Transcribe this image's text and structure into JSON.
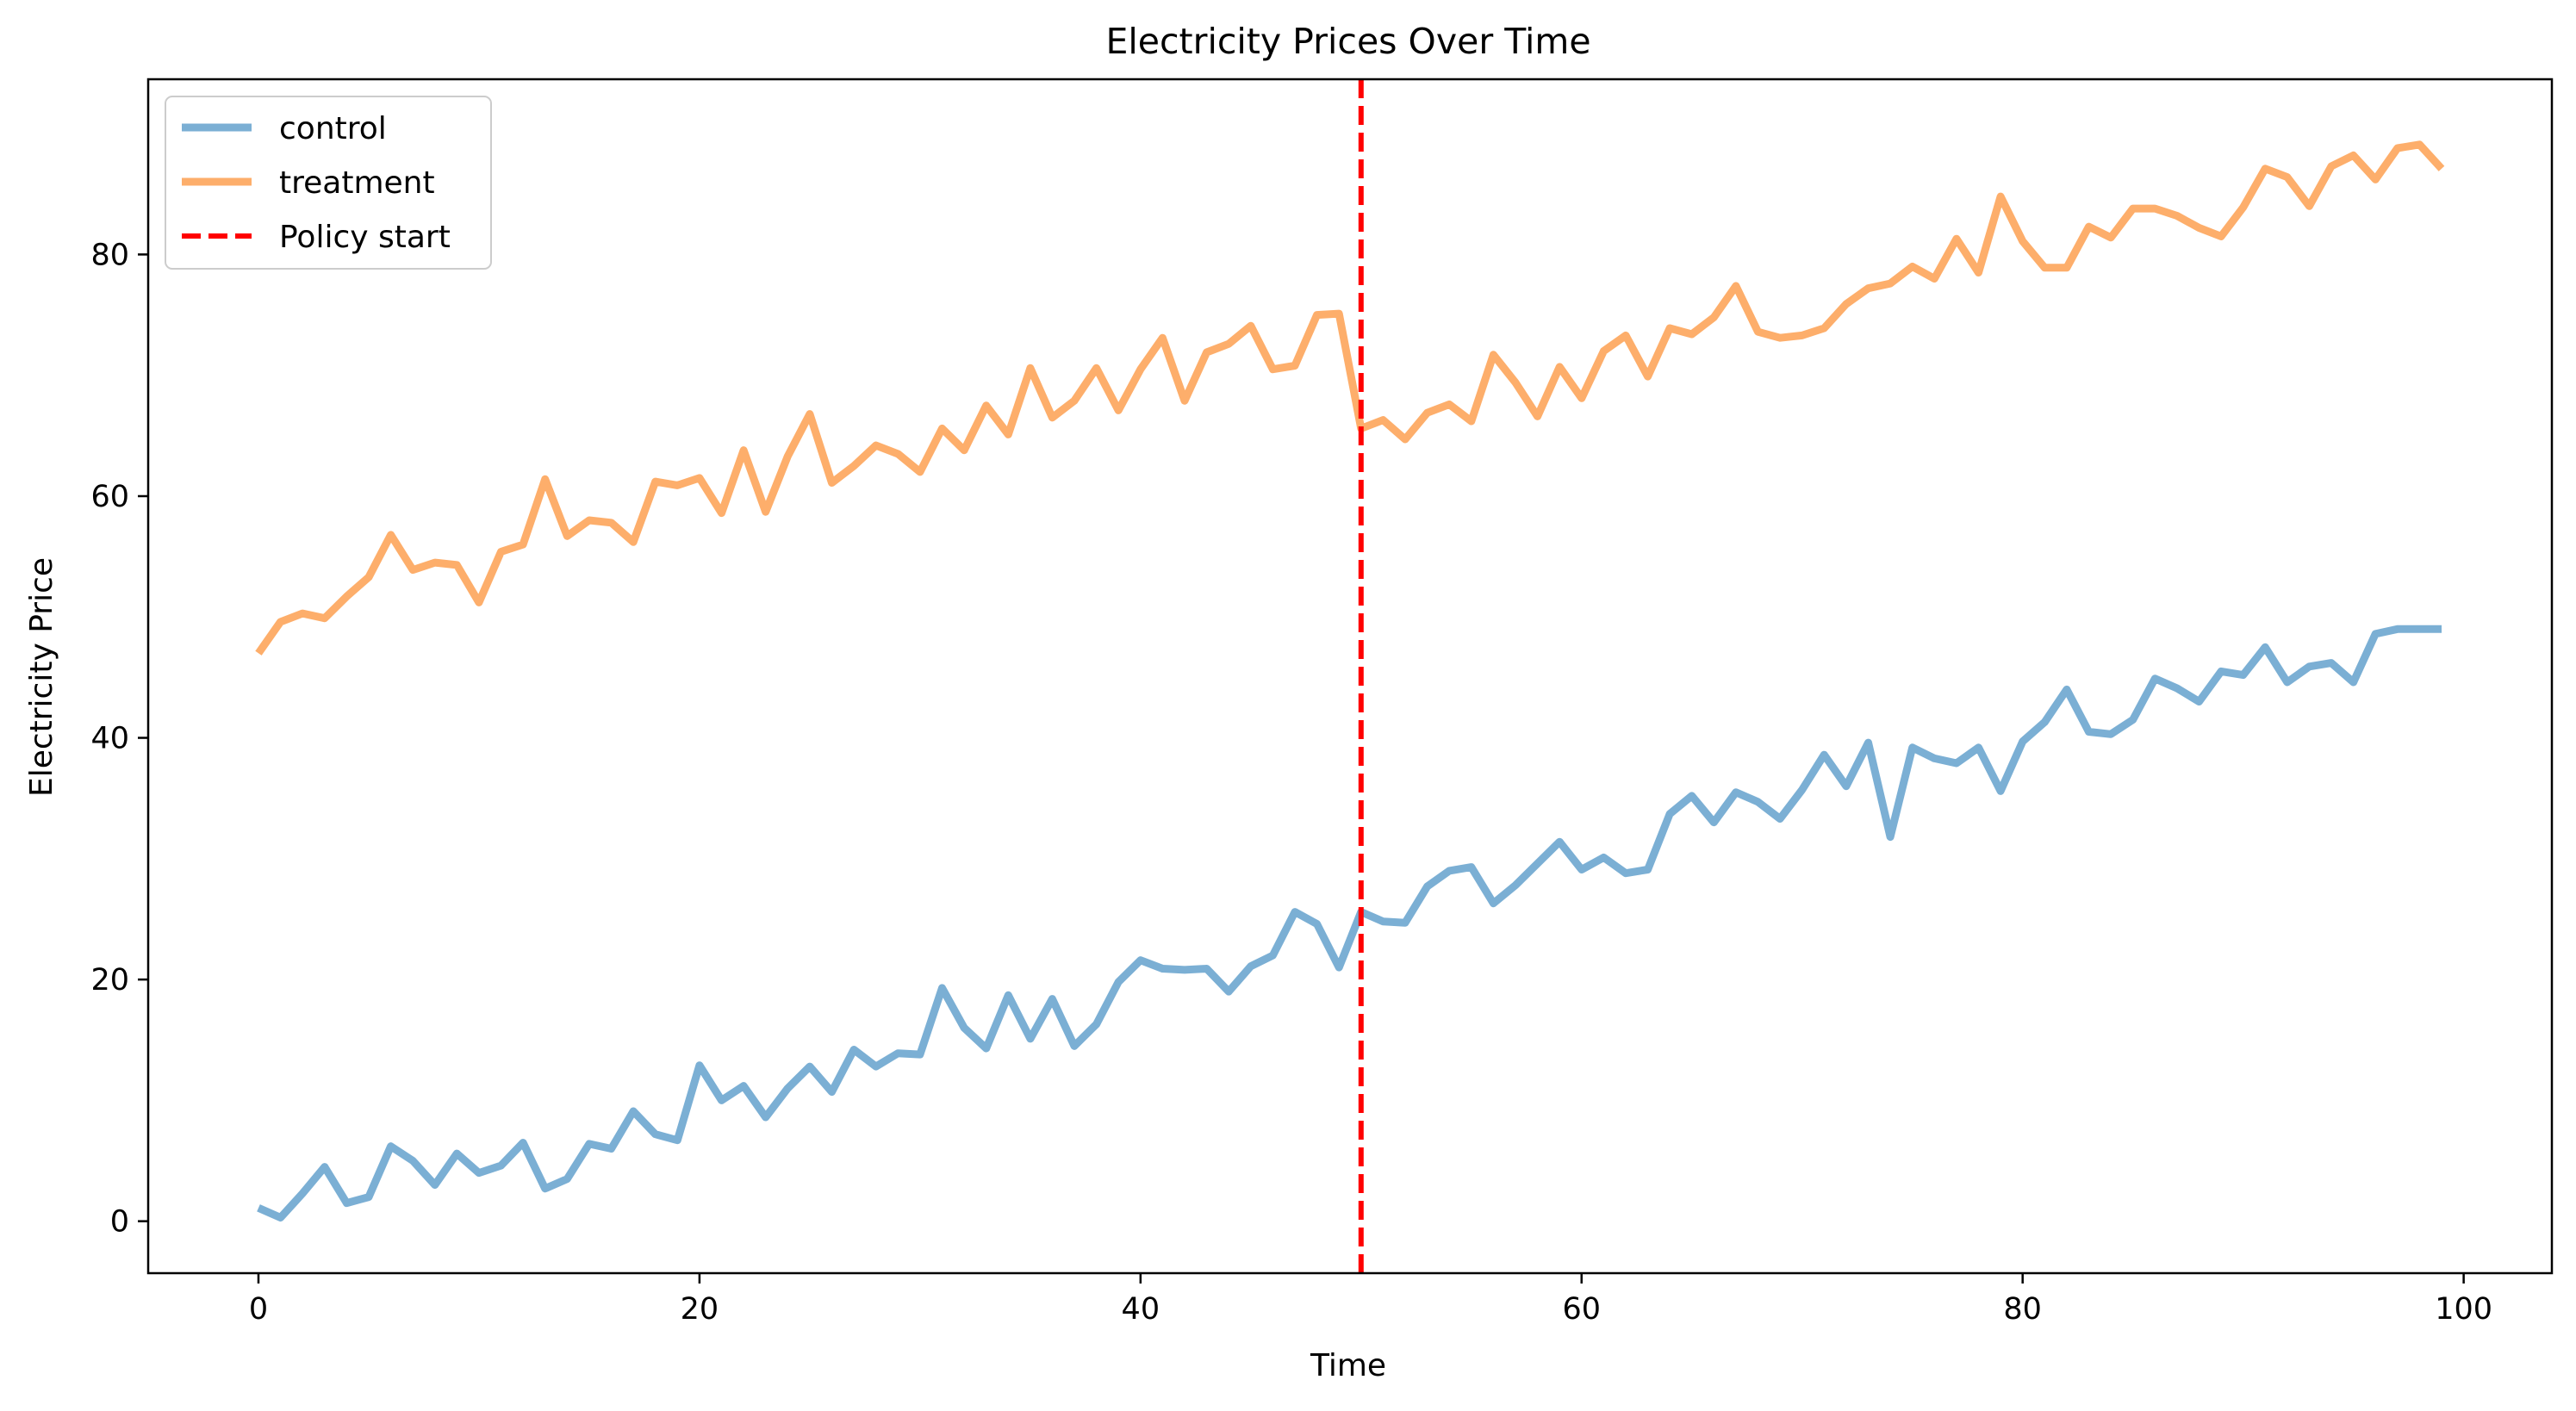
{
  "chart_data": {
    "type": "line",
    "title": "Electricity Prices Over Time",
    "xlabel": "Time",
    "ylabel": "Electricity Price",
    "xlim": [
      -5,
      104
    ],
    "ylim": [
      -4.3,
      94.5
    ],
    "xticks": [
      0,
      20,
      40,
      60,
      80,
      100
    ],
    "yticks": [
      0,
      20,
      40,
      60,
      80
    ],
    "grid": false,
    "legend_position": "top-left",
    "x": [
      0,
      1,
      2,
      3,
      4,
      5,
      6,
      7,
      8,
      9,
      10,
      11,
      12,
      13,
      14,
      15,
      16,
      17,
      18,
      19,
      20,
      21,
      22,
      23,
      24,
      25,
      26,
      27,
      28,
      29,
      30,
      31,
      32,
      33,
      34,
      35,
      36,
      37,
      38,
      39,
      40,
      41,
      42,
      43,
      44,
      45,
      46,
      47,
      48,
      49,
      50,
      51,
      52,
      53,
      54,
      55,
      56,
      57,
      58,
      59,
      60,
      61,
      62,
      63,
      64,
      65,
      66,
      67,
      68,
      69,
      70,
      71,
      72,
      73,
      74,
      75,
      76,
      77,
      78,
      79,
      80,
      81,
      82,
      83,
      84,
      85,
      86,
      87,
      88,
      89,
      90,
      91,
      92,
      93,
      94,
      95,
      96,
      97,
      98,
      99
    ],
    "series": [
      {
        "name": "control",
        "color": "#7bafd4",
        "style": "solid",
        "values": [
          1.1,
          0.3,
          2.3,
          4.5,
          1.5,
          2.0,
          6.2,
          5.0,
          3.0,
          5.6,
          4.0,
          4.6,
          6.5,
          2.7,
          3.5,
          6.4,
          6.0,
          9.1,
          7.2,
          6.7,
          12.9,
          10.0,
          11.2,
          8.6,
          11.0,
          12.8,
          10.7,
          14.2,
          12.8,
          13.9,
          13.8,
          19.3,
          16.0,
          14.3,
          18.7,
          15.1,
          18.4,
          14.5,
          16.3,
          19.8,
          21.6,
          20.9,
          20.8,
          20.9,
          19.0,
          21.1,
          22.0,
          25.6,
          24.6,
          21.0,
          25.6,
          24.8,
          24.7,
          27.7,
          29.0,
          29.3,
          26.3,
          27.8,
          29.6,
          31.4,
          29.1,
          30.1,
          28.8,
          29.1,
          33.7,
          35.2,
          33.0,
          35.5,
          34.7,
          33.3,
          35.7,
          38.6,
          36.0,
          39.6,
          31.8,
          39.2,
          38.3,
          37.9,
          39.2,
          35.6,
          39.7,
          41.3,
          44.0,
          40.5,
          40.3,
          41.5,
          44.9,
          44.1,
          43.0,
          45.5,
          45.2,
          47.5,
          44.6,
          45.9,
          46.2,
          44.6,
          48.6,
          49.0,
          49.0,
          49.0
        ]
      },
      {
        "name": "treatment",
        "color": "#fdae6b",
        "style": "solid",
        "values": [
          47.0,
          49.6,
          50.3,
          49.9,
          51.7,
          53.3,
          56.8,
          53.9,
          54.5,
          54.3,
          51.2,
          55.4,
          56.0,
          61.4,
          56.7,
          58.0,
          57.8,
          56.2,
          61.2,
          60.9,
          61.5,
          58.6,
          63.8,
          58.7,
          63.3,
          66.8,
          61.1,
          62.5,
          64.2,
          63.5,
          62.0,
          65.6,
          63.8,
          67.5,
          65.1,
          70.6,
          66.5,
          67.9,
          70.6,
          67.1,
          70.5,
          73.1,
          67.9,
          71.9,
          72.6,
          74.1,
          70.5,
          70.8,
          75.0,
          75.1,
          65.6,
          66.3,
          64.7,
          66.9,
          67.6,
          66.2,
          71.7,
          69.4,
          66.6,
          70.7,
          68.1,
          72.0,
          73.3,
          69.9,
          73.9,
          73.4,
          74.8,
          77.4,
          73.6,
          73.1,
          73.3,
          73.9,
          75.9,
          77.2,
          77.6,
          79.0,
          78.0,
          81.3,
          78.5,
          84.8,
          81.1,
          78.9,
          78.9,
          82.3,
          81.4,
          83.8,
          83.8,
          83.2,
          82.2,
          81.5,
          83.9,
          87.1,
          86.4,
          84.0,
          87.3,
          88.2,
          86.2,
          88.8,
          89.1,
          87.1
        ]
      }
    ],
    "annotations": [
      {
        "type": "vline",
        "x": 50,
        "label": "Policy start",
        "color": "#ff0000",
        "style": "dashed"
      }
    ],
    "legend": [
      "control",
      "treatment",
      "Policy start"
    ]
  }
}
